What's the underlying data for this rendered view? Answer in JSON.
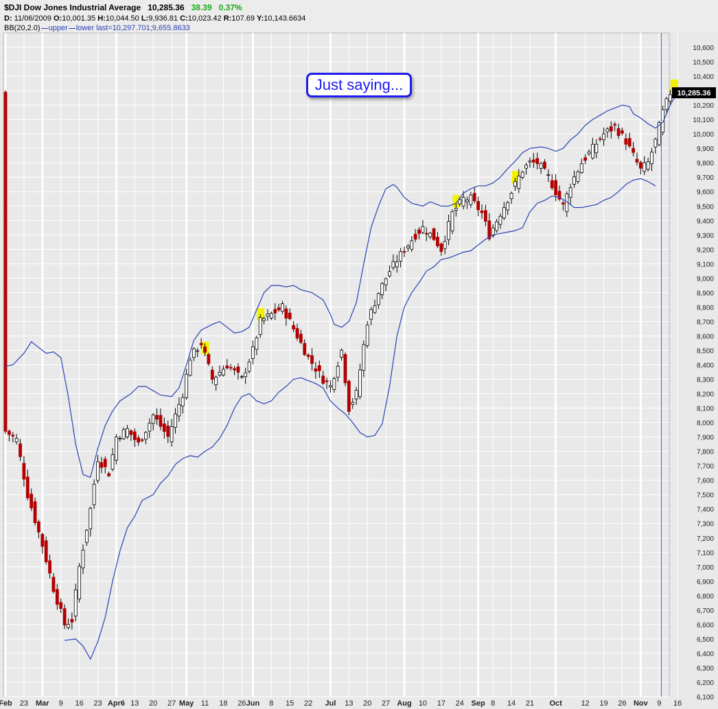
{
  "header": {
    "title": "$DJI Dow Jones Industrial Average",
    "last": "10,285.36",
    "change": "38.39",
    "change_pct": "0.37%",
    "d_label": "D:",
    "d_value": "11/06/2009",
    "o_label": "O:",
    "o_value": "10,001.35",
    "h_label": "H:",
    "h_value": "10,044.50",
    "l_label": "L:",
    "l_value": "9,936.81",
    "c_label": "C:",
    "c_value": "10,023.42",
    "r_label": "R:",
    "r_value": "107.69",
    "y_label": "Y:",
    "y_value": "10,143.6634",
    "bb_label": "BB(20,2.0)",
    "bb_upper": "upper",
    "bb_lower": "lower",
    "bb_last": "last=10,297.701;9,655.8633"
  },
  "annotation": {
    "text": "Just saying..."
  },
  "price_flag": "10,285.36",
  "colors": {
    "background": "#e9e9e9",
    "up": "#ffffff",
    "down": "#b40000",
    "band": "#2742b4",
    "highlight": "#f2f200",
    "annotation": "#1b1bf0"
  },
  "chart_data": {
    "type": "candlestick",
    "title": "$DJI Dow Jones Industrial Average",
    "ylim": [
      6100,
      10700
    ],
    "y_ticks": [
      "10,600",
      "10,500",
      "10,400",
      "10,300",
      "10,200",
      "10,100",
      "10,000",
      "9,900",
      "9,800",
      "9,700",
      "9,600",
      "9,500",
      "9,400",
      "9,300",
      "9,200",
      "9,100",
      "9,000",
      "8,900",
      "8,800",
      "8,700",
      "8,600",
      "8,500",
      "8,400",
      "8,300",
      "8,200",
      "8,100",
      "8,000",
      "7,900",
      "7,800",
      "7,700",
      "7,600",
      "7,500",
      "7,400",
      "7,300",
      "7,200",
      "7,100",
      "7,000",
      "6,900",
      "6,800",
      "6,700",
      "6,600",
      "6,500",
      "6,400",
      "6,300",
      "6,200",
      "6,100"
    ],
    "x_ticks": [
      {
        "label": "Feb",
        "i": 0,
        "bold": true
      },
      {
        "label": "23",
        "i": 5
      },
      {
        "label": "Mar",
        "i": 10,
        "bold": true
      },
      {
        "label": "9",
        "i": 15
      },
      {
        "label": "16",
        "i": 20
      },
      {
        "label": "23",
        "i": 25
      },
      {
        "label": "Apr6",
        "i": 30,
        "bold": true
      },
      {
        "label": "13",
        "i": 35
      },
      {
        "label": "20",
        "i": 40
      },
      {
        "label": "27",
        "i": 45
      },
      {
        "label": "May",
        "i": 49,
        "bold": true
      },
      {
        "label": "11",
        "i": 54
      },
      {
        "label": "18",
        "i": 59
      },
      {
        "label": "26",
        "i": 64
      },
      {
        "label": "Jun",
        "i": 67,
        "bold": true
      },
      {
        "label": "8",
        "i": 72
      },
      {
        "label": "15",
        "i": 77
      },
      {
        "label": "22",
        "i": 82
      },
      {
        "label": "Jul",
        "i": 88,
        "bold": true
      },
      {
        "label": "13",
        "i": 93
      },
      {
        "label": "20",
        "i": 98
      },
      {
        "label": "27",
        "i": 103
      },
      {
        "label": "Aug",
        "i": 108,
        "bold": true
      },
      {
        "label": "10",
        "i": 113
      },
      {
        "label": "17",
        "i": 118
      },
      {
        "label": "24",
        "i": 123
      },
      {
        "label": "Sep",
        "i": 128,
        "bold": true
      },
      {
        "label": "8",
        "i": 132
      },
      {
        "label": "14",
        "i": 137
      },
      {
        "label": "21",
        "i": 142
      },
      {
        "label": "Oct",
        "i": 149,
        "bold": true
      },
      {
        "label": "12",
        "i": 157
      },
      {
        "label": "19",
        "i": 162
      },
      {
        "label": "26",
        "i": 167
      },
      {
        "label": "Nov",
        "i": 172,
        "bold": true
      },
      {
        "label": "9",
        "i": 177
      },
      {
        "label": "16",
        "i": 182
      }
    ],
    "last_index": 180,
    "x_count": 185,
    "closes": [
      [
        0,
        7940
      ],
      [
        3,
        7880
      ],
      [
        6,
        7500
      ],
      [
        10,
        7150
      ],
      [
        13,
        6850
      ],
      [
        16,
        6600
      ],
      [
        18,
        6630
      ],
      [
        20,
        7000
      ],
      [
        23,
        7400
      ],
      [
        25,
        7750
      ],
      [
        28,
        7650
      ],
      [
        30,
        7900
      ],
      [
        33,
        7950
      ],
      [
        36,
        7850
      ],
      [
        40,
        8050
      ],
      [
        44,
        7900
      ],
      [
        48,
        8200
      ],
      [
        50,
        8450
      ],
      [
        53,
        8550
      ],
      [
        56,
        8300
      ],
      [
        60,
        8400
      ],
      [
        64,
        8300
      ],
      [
        67,
        8500
      ],
      [
        69,
        8700
      ],
      [
        72,
        8750
      ],
      [
        75,
        8800
      ],
      [
        78,
        8650
      ],
      [
        82,
        8450
      ],
      [
        86,
        8300
      ],
      [
        88,
        8250
      ],
      [
        91,
        8500
      ],
      [
        93,
        8100
      ],
      [
        95,
        8200
      ],
      [
        98,
        8700
      ],
      [
        101,
        8900
      ],
      [
        104,
        9050
      ],
      [
        108,
        9200
      ],
      [
        111,
        9300
      ],
      [
        113,
        9350
      ],
      [
        116,
        9280
      ],
      [
        118,
        9200
      ],
      [
        121,
        9450
      ],
      [
        124,
        9550
      ],
      [
        126,
        9550
      ],
      [
        129,
        9450
      ],
      [
        131,
        9300
      ],
      [
        134,
        9450
      ],
      [
        137,
        9600
      ],
      [
        140,
        9750
      ],
      [
        142,
        9800
      ],
      [
        144,
        9800
      ],
      [
        147,
        9700
      ],
      [
        149,
        9600
      ],
      [
        151,
        9500
      ],
      [
        153,
        9650
      ],
      [
        156,
        9800
      ],
      [
        159,
        9900
      ],
      [
        162,
        10000
      ],
      [
        165,
        10050
      ],
      [
        168,
        9950
      ],
      [
        170,
        9850
      ],
      [
        172,
        9750
      ],
      [
        174,
        9800
      ],
      [
        176,
        9950
      ],
      [
        178,
        10150
      ],
      [
        180,
        10285
      ]
    ],
    "bands": {
      "upper": [
        [
          0,
          8390
        ],
        [
          2,
          8400
        ],
        [
          5,
          8480
        ],
        [
          7,
          8560
        ],
        [
          9,
          8520
        ],
        [
          11,
          8480
        ],
        [
          13,
          8490
        ],
        [
          15,
          8450
        ],
        [
          17,
          8180
        ],
        [
          19,
          7850
        ],
        [
          21,
          7640
        ],
        [
          23,
          7620
        ],
        [
          25,
          7820
        ],
        [
          27,
          7980
        ],
        [
          29,
          8080
        ],
        [
          31,
          8150
        ],
        [
          34,
          8200
        ],
        [
          36,
          8250
        ],
        [
          38,
          8250
        ],
        [
          40,
          8220
        ],
        [
          42,
          8190
        ],
        [
          45,
          8180
        ],
        [
          47,
          8240
        ],
        [
          49,
          8400
        ],
        [
          51,
          8570
        ],
        [
          53,
          8640
        ],
        [
          56,
          8680
        ],
        [
          58,
          8700
        ],
        [
          60,
          8660
        ],
        [
          62,
          8620
        ],
        [
          64,
          8630
        ],
        [
          66,
          8660
        ],
        [
          68,
          8780
        ],
        [
          70,
          8900
        ],
        [
          72,
          8950
        ],
        [
          74,
          8950
        ],
        [
          76,
          8940
        ],
        [
          78,
          8950
        ],
        [
          80,
          8920
        ],
        [
          83,
          8900
        ],
        [
          86,
          8850
        ],
        [
          88,
          8750
        ],
        [
          89,
          8680
        ],
        [
          91,
          8660
        ],
        [
          93,
          8700
        ],
        [
          95,
          8830
        ],
        [
          97,
          9100
        ],
        [
          99,
          9350
        ],
        [
          101,
          9500
        ],
        [
          103,
          9620
        ],
        [
          105,
          9650
        ],
        [
          106,
          9630
        ],
        [
          108,
          9560
        ],
        [
          110,
          9520
        ],
        [
          113,
          9500
        ],
        [
          115,
          9530
        ],
        [
          118,
          9500
        ],
        [
          120,
          9500
        ],
        [
          122,
          9520
        ],
        [
          124,
          9590
        ],
        [
          126,
          9620
        ],
        [
          128,
          9640
        ],
        [
          130,
          9640
        ],
        [
          132,
          9660
        ],
        [
          134,
          9700
        ],
        [
          136,
          9760
        ],
        [
          138,
          9810
        ],
        [
          140,
          9870
        ],
        [
          142,
          9900
        ],
        [
          145,
          9910
        ],
        [
          147,
          9900
        ],
        [
          149,
          9880
        ],
        [
          151,
          9900
        ],
        [
          153,
          9960
        ],
        [
          155,
          10000
        ],
        [
          157,
          10060
        ],
        [
          159,
          10100
        ],
        [
          161,
          10130
        ],
        [
          163,
          10160
        ],
        [
          165,
          10180
        ],
        [
          167,
          10200
        ],
        [
          169,
          10190
        ],
        [
          170,
          10140
        ],
        [
          172,
          10110
        ],
        [
          174,
          10070
        ],
        [
          176,
          10040
        ],
        [
          178,
          10080
        ],
        [
          180,
          10200
        ],
        [
          182,
          10290
        ]
      ],
      "lower": [
        [
          16,
          6490
        ],
        [
          19,
          6500
        ],
        [
          21,
          6450
        ],
        [
          23,
          6360
        ],
        [
          25,
          6480
        ],
        [
          27,
          6650
        ],
        [
          29,
          6900
        ],
        [
          31,
          7110
        ],
        [
          33,
          7270
        ],
        [
          35,
          7350
        ],
        [
          37,
          7460
        ],
        [
          40,
          7500
        ],
        [
          42,
          7580
        ],
        [
          44,
          7630
        ],
        [
          46,
          7710
        ],
        [
          48,
          7750
        ],
        [
          50,
          7770
        ],
        [
          52,
          7760
        ],
        [
          54,
          7800
        ],
        [
          56,
          7830
        ],
        [
          58,
          7890
        ],
        [
          60,
          7980
        ],
        [
          62,
          8100
        ],
        [
          64,
          8180
        ],
        [
          66,
          8200
        ],
        [
          68,
          8150
        ],
        [
          70,
          8130
        ],
        [
          72,
          8150
        ],
        [
          74,
          8210
        ],
        [
          76,
          8250
        ],
        [
          78,
          8300
        ],
        [
          80,
          8310
        ],
        [
          82,
          8290
        ],
        [
          84,
          8270
        ],
        [
          86,
          8240
        ],
        [
          88,
          8150
        ],
        [
          90,
          8100
        ],
        [
          92,
          8060
        ],
        [
          94,
          8000
        ],
        [
          96,
          7930
        ],
        [
          98,
          7900
        ],
        [
          100,
          7910
        ],
        [
          102,
          7990
        ],
        [
          104,
          8250
        ],
        [
          106,
          8600
        ],
        [
          108,
          8800
        ],
        [
          110,
          8900
        ],
        [
          112,
          8970
        ],
        [
          114,
          9050
        ],
        [
          116,
          9080
        ],
        [
          118,
          9130
        ],
        [
          120,
          9140
        ],
        [
          122,
          9160
        ],
        [
          124,
          9180
        ],
        [
          126,
          9190
        ],
        [
          128,
          9230
        ],
        [
          130,
          9270
        ],
        [
          132,
          9300
        ],
        [
          134,
          9310
        ],
        [
          136,
          9320
        ],
        [
          138,
          9330
        ],
        [
          140,
          9350
        ],
        [
          142,
          9460
        ],
        [
          144,
          9520
        ],
        [
          146,
          9540
        ],
        [
          148,
          9570
        ],
        [
          150,
          9560
        ],
        [
          152,
          9530
        ],
        [
          154,
          9490
        ],
        [
          156,
          9490
        ],
        [
          158,
          9500
        ],
        [
          160,
          9510
        ],
        [
          162,
          9540
        ],
        [
          164,
          9560
        ],
        [
          166,
          9600
        ],
        [
          168,
          9650
        ],
        [
          170,
          9680
        ],
        [
          172,
          9690
        ],
        [
          174,
          9670
        ],
        [
          176,
          9640
        ]
      ]
    },
    "highlights": [
      54,
      69,
      122,
      138,
      181
    ]
  }
}
